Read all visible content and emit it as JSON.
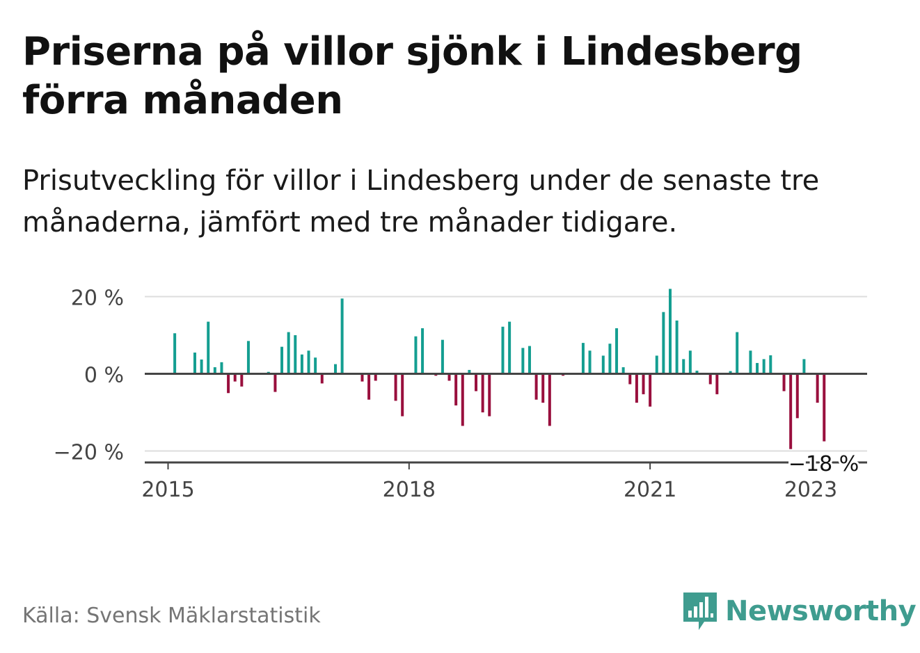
{
  "title": "Priserna på villor sjönk i Lindesberg förra månaden",
  "subtitle": "Prisutveckling för villor i Lindesberg under de senaste tre månaderna, jämfört med tre månader tidigare.",
  "source": "Källa: Svensk Mäklarstatistik",
  "brand": "Newsworthy",
  "colors": {
    "positive": "#149e91",
    "negative": "#990f3d",
    "grid": "#dddddd",
    "axis": "#444444"
  },
  "chart_data": {
    "type": "bar",
    "x_ticks": [
      {
        "label": "2015",
        "x": "2015-01"
      },
      {
        "label": "2018",
        "x": "2018-01"
      },
      {
        "label": "2021",
        "x": "2021-01"
      },
      {
        "label": "2023",
        "x": "2023-01"
      }
    ],
    "y_ticks": [
      {
        "label": "20 %",
        "value": 20
      },
      {
        "label": "0 %",
        "value": 0
      },
      {
        "label": "−20 %",
        "value": -20
      }
    ],
    "ylim": [
      -23.5,
      20
    ],
    "grid": true,
    "last_label": "−18 %",
    "values": [
      {
        "x": "2015-02",
        "y": 10.5
      },
      {
        "x": "2015-03",
        "y": 0
      },
      {
        "x": "2015-04",
        "y": 0
      },
      {
        "x": "2015-05",
        "y": 5.5
      },
      {
        "x": "2015-06",
        "y": 3.7
      },
      {
        "x": "2015-07",
        "y": 13.5
      },
      {
        "x": "2015-08",
        "y": 1.7
      },
      {
        "x": "2015-09",
        "y": 3
      },
      {
        "x": "2015-10",
        "y": -5
      },
      {
        "x": "2015-11",
        "y": -2
      },
      {
        "x": "2015-12",
        "y": -3.3
      },
      {
        "x": "2016-01",
        "y": 8.5
      },
      {
        "x": "2016-02",
        "y": 0
      },
      {
        "x": "2016-03",
        "y": 0
      },
      {
        "x": "2016-04",
        "y": 0.5
      },
      {
        "x": "2016-05",
        "y": -4.7
      },
      {
        "x": "2016-06",
        "y": 7
      },
      {
        "x": "2016-07",
        "y": 10.8
      },
      {
        "x": "2016-08",
        "y": 10
      },
      {
        "x": "2016-09",
        "y": 5
      },
      {
        "x": "2016-10",
        "y": 6
      },
      {
        "x": "2016-11",
        "y": 4.2
      },
      {
        "x": "2016-12",
        "y": -2.5
      },
      {
        "x": "2017-01",
        "y": 0
      },
      {
        "x": "2017-02",
        "y": 2.5
      },
      {
        "x": "2017-03",
        "y": 19.5
      },
      {
        "x": "2017-04",
        "y": 0
      },
      {
        "x": "2017-05",
        "y": 0
      },
      {
        "x": "2017-06",
        "y": -2
      },
      {
        "x": "2017-07",
        "y": -6.7
      },
      {
        "x": "2017-08",
        "y": -1.8
      },
      {
        "x": "2017-09",
        "y": 0
      },
      {
        "x": "2017-10",
        "y": 0
      },
      {
        "x": "2017-11",
        "y": -7
      },
      {
        "x": "2017-12",
        "y": -11
      },
      {
        "x": "2018-01",
        "y": 0
      },
      {
        "x": "2018-02",
        "y": 9.7
      },
      {
        "x": "2018-03",
        "y": 11.8
      },
      {
        "x": "2018-04",
        "y": 0
      },
      {
        "x": "2018-05",
        "y": -0.5
      },
      {
        "x": "2018-06",
        "y": 8.8
      },
      {
        "x": "2018-07",
        "y": -1.8
      },
      {
        "x": "2018-08",
        "y": -8.2
      },
      {
        "x": "2018-09",
        "y": -13.5
      },
      {
        "x": "2018-10",
        "y": 1
      },
      {
        "x": "2018-11",
        "y": -4.5
      },
      {
        "x": "2018-12",
        "y": -10
      },
      {
        "x": "2019-01",
        "y": -11
      },
      {
        "x": "2019-02",
        "y": 0
      },
      {
        "x": "2019-03",
        "y": 12.2
      },
      {
        "x": "2019-04",
        "y": 13.5
      },
      {
        "x": "2019-05",
        "y": 0
      },
      {
        "x": "2019-06",
        "y": 6.7
      },
      {
        "x": "2019-07",
        "y": 7.2
      },
      {
        "x": "2019-08",
        "y": -6.7
      },
      {
        "x": "2019-09",
        "y": -7.5
      },
      {
        "x": "2019-10",
        "y": -13.5
      },
      {
        "x": "2019-11",
        "y": 0
      },
      {
        "x": "2019-12",
        "y": -0.5
      },
      {
        "x": "2020-01",
        "y": 0
      },
      {
        "x": "2020-02",
        "y": 0
      },
      {
        "x": "2020-03",
        "y": 8
      },
      {
        "x": "2020-04",
        "y": 6
      },
      {
        "x": "2020-05",
        "y": 0
      },
      {
        "x": "2020-06",
        "y": 4.7
      },
      {
        "x": "2020-07",
        "y": 7.8
      },
      {
        "x": "2020-08",
        "y": 11.8
      },
      {
        "x": "2020-09",
        "y": 1.7
      },
      {
        "x": "2020-10",
        "y": -2.7
      },
      {
        "x": "2020-11",
        "y": -7.5
      },
      {
        "x": "2020-12",
        "y": -5.3
      },
      {
        "x": "2021-01",
        "y": -8.5
      },
      {
        "x": "2021-02",
        "y": 4.7
      },
      {
        "x": "2021-03",
        "y": 16
      },
      {
        "x": "2021-04",
        "y": 22
      },
      {
        "x": "2021-05",
        "y": 13.8
      },
      {
        "x": "2021-06",
        "y": 3.8
      },
      {
        "x": "2021-07",
        "y": 6
      },
      {
        "x": "2021-08",
        "y": 0.8
      },
      {
        "x": "2021-09",
        "y": 0
      },
      {
        "x": "2021-10",
        "y": -2.7
      },
      {
        "x": "2021-11",
        "y": -5.3
      },
      {
        "x": "2021-12",
        "y": 0
      },
      {
        "x": "2022-01",
        "y": 0.7
      },
      {
        "x": "2022-02",
        "y": 10.8
      },
      {
        "x": "2022-03",
        "y": 0
      },
      {
        "x": "2022-04",
        "y": 6
      },
      {
        "x": "2022-05",
        "y": 2.8
      },
      {
        "x": "2022-06",
        "y": 3.8
      },
      {
        "x": "2022-07",
        "y": 4.8
      },
      {
        "x": "2022-08",
        "y": 0
      },
      {
        "x": "2022-09",
        "y": -4.5
      },
      {
        "x": "2022-10",
        "y": -19.5
      },
      {
        "x": "2022-11",
        "y": -11.5
      },
      {
        "x": "2022-12",
        "y": 3.8
      },
      {
        "x": "2023-01",
        "y": 0
      },
      {
        "x": "2023-02",
        "y": -7.5
      },
      {
        "x": "2023-03",
        "y": -17.5
      }
    ]
  }
}
